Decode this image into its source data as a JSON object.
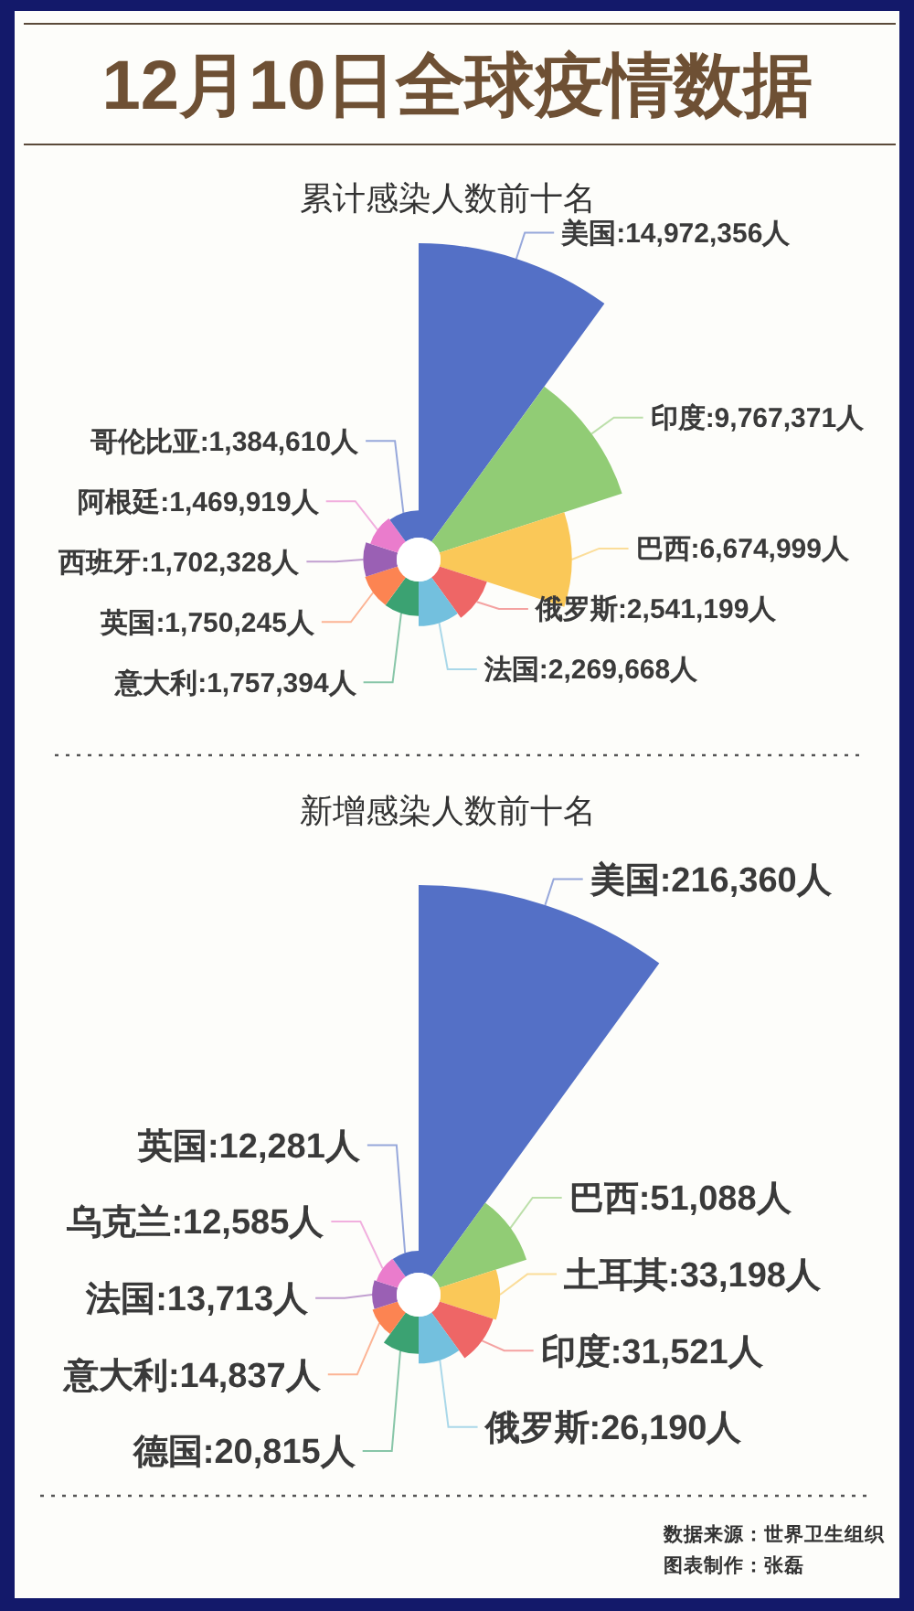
{
  "chart_data": [
    {
      "type": "other",
      "title": "12月10日全球疫情数据",
      "subtitle": "累计感染人数前十名",
      "categories": [
        "美国",
        "印度",
        "巴西",
        "俄罗斯",
        "法国",
        "意大利",
        "英国",
        "西班牙",
        "阿根廷",
        "哥伦比亚"
      ],
      "values": [
        14972356,
        9767371,
        6674999,
        2541199,
        2269668,
        1757394,
        1750245,
        1702328,
        1469919,
        1384610
      ],
      "value_labels": [
        ":14,972,356人",
        ":9,767,371人",
        ":6,674,999人",
        ":2,541,199人",
        ":2,269,668人",
        ":1,757,394人",
        ":1,750,245人",
        ":1,702,328人",
        ":1,469,919人",
        ":1,384,610人"
      ],
      "colors": [
        "#5470c6",
        "#91cc75",
        "#fac858",
        "#ee6666",
        "#73c0de",
        "#3ba272",
        "#fc8452",
        "#9a60b4",
        "#ea7ccc",
        "#5470c6"
      ]
    },
    {
      "type": "other",
      "title": "新增感染人数前十名",
      "categories": [
        "美国",
        "巴西",
        "土耳其",
        "印度",
        "俄罗斯",
        "德国",
        "意大利",
        "法国",
        "乌克兰",
        "英国"
      ],
      "values": [
        216360,
        51088,
        33198,
        31521,
        26190,
        20815,
        14837,
        13713,
        12585,
        12281
      ],
      "value_labels": [
        ":216,360人",
        ":51,088人",
        ":33,198人",
        ":31,521人",
        ":26,190人",
        ":20,815人",
        ":14,837人",
        ":13,713人",
        ":12,585人",
        ":12,281人"
      ],
      "colors": [
        "#5470c6",
        "#91cc75",
        "#fac858",
        "#ee6666",
        "#73c0de",
        "#3ba272",
        "#fc8452",
        "#9a60b4",
        "#ea7ccc",
        "#5470c6"
      ],
      "annotations": [
        "数据来源：世界卫生组织",
        "图表制作：张磊"
      ]
    }
  ]
}
